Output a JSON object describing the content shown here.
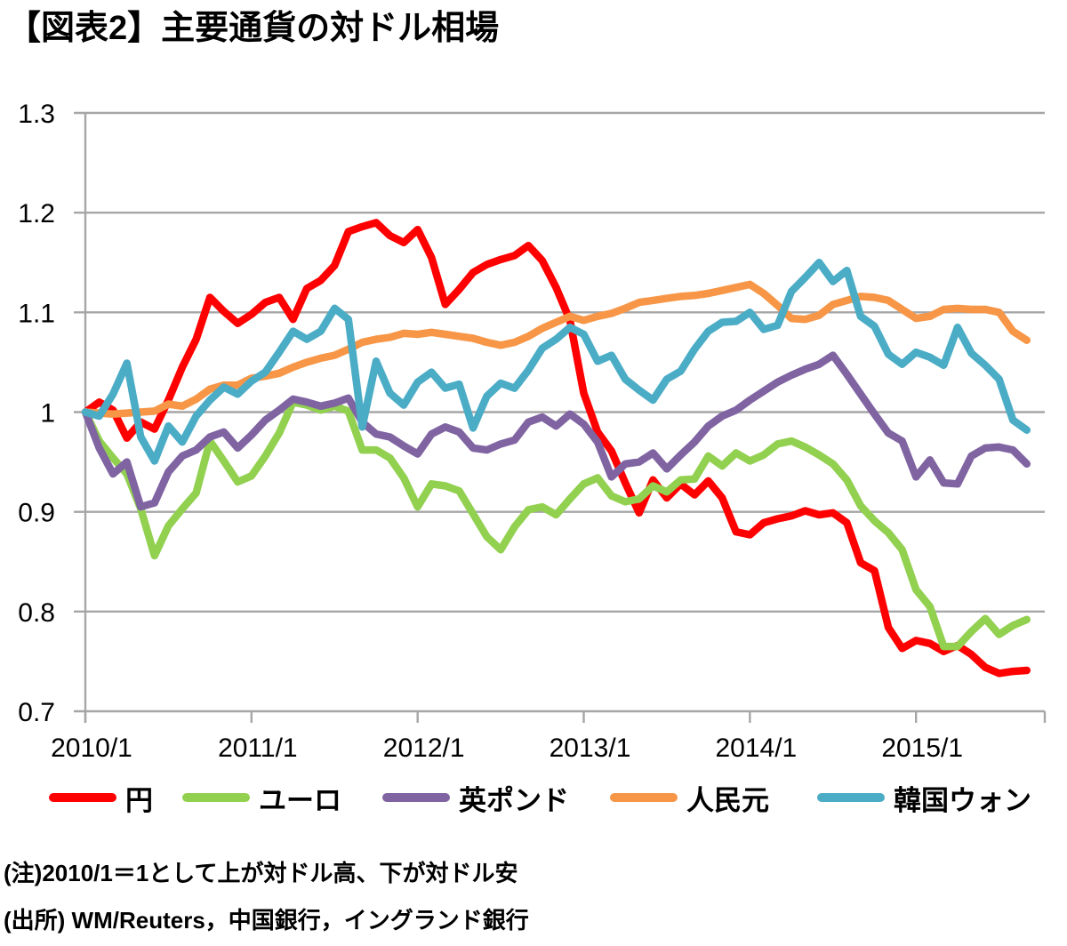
{
  "title": "【図表2】主要通貨の対ドル相場",
  "notes": [
    "(注)2010/1＝1として上が対ドル高、下が対ドル安",
    "(出所) WM/Reuters，中国銀行，イングランド銀行"
  ],
  "chart_data": {
    "type": "line",
    "title": "【図表2】主要通貨の対ドル相場",
    "x_unit": "month",
    "x_start": "2010/1",
    "x_end": "2015/9",
    "x_tick_labels": [
      "2010/1",
      "2011/1",
      "2012/1",
      "2013/1",
      "2014/1",
      "2015/1"
    ],
    "x_tick_indices": [
      0,
      12,
      24,
      36,
      48,
      60
    ],
    "y_ticks": [
      "1.3",
      "1.2",
      "1.1",
      "1",
      "0.9",
      "0.8",
      "0.7"
    ],
    "ylim": [
      0.7,
      1.3
    ],
    "grid": true,
    "grid_color": "#A6A6A6",
    "legend_position": "bottom",
    "series": [
      {
        "name": "円",
        "id": "yen",
        "color": "#FF0000",
        "values": [
          1.0,
          1.01,
          1.002,
          0.974,
          0.99,
          0.983,
          1.012,
          1.045,
          1.073,
          1.115,
          1.101,
          1.089,
          1.098,
          1.11,
          1.115,
          1.093,
          1.124,
          1.132,
          1.147,
          1.181,
          1.186,
          1.19,
          1.177,
          1.17,
          1.183,
          1.155,
          1.108,
          1.123,
          1.14,
          1.148,
          1.153,
          1.157,
          1.167,
          1.152,
          1.125,
          1.092,
          1.019,
          0.98,
          0.961,
          0.929,
          0.899,
          0.932,
          0.914,
          0.928,
          0.917,
          0.931,
          0.914,
          0.88,
          0.877,
          0.889,
          0.893,
          0.896,
          0.901,
          0.897,
          0.899,
          0.889,
          0.849,
          0.841,
          0.784,
          0.763,
          0.771,
          0.768,
          0.76,
          0.766,
          0.757,
          0.744,
          0.738,
          0.74,
          0.741
        ]
      },
      {
        "name": "ユーロ",
        "id": "euro",
        "color": "#92D050",
        "values": [
          1.0,
          0.971,
          0.954,
          0.938,
          0.903,
          0.856,
          0.886,
          0.903,
          0.919,
          0.971,
          0.951,
          0.93,
          0.936,
          0.956,
          0.979,
          1.01,
          1.007,
          1.002,
          1.006,
          1.001,
          0.962,
          0.962,
          0.954,
          0.934,
          0.905,
          0.928,
          0.926,
          0.921,
          0.898,
          0.875,
          0.862,
          0.885,
          0.902,
          0.905,
          0.897,
          0.913,
          0.928,
          0.934,
          0.916,
          0.91,
          0.913,
          0.926,
          0.92,
          0.932,
          0.933,
          0.956,
          0.946,
          0.959,
          0.951,
          0.957,
          0.968,
          0.971,
          0.965,
          0.957,
          0.948,
          0.932,
          0.906,
          0.891,
          0.879,
          0.862,
          0.822,
          0.805,
          0.765,
          0.765,
          0.78,
          0.793,
          0.777,
          0.786,
          0.792
        ]
      },
      {
        "name": "英ポンド",
        "id": "gbp",
        "color": "#8064A2",
        "values": [
          1.0,
          0.964,
          0.938,
          0.95,
          0.905,
          0.909,
          0.94,
          0.956,
          0.962,
          0.975,
          0.98,
          0.964,
          0.977,
          0.992,
          1.002,
          1.013,
          1.01,
          1.006,
          1.009,
          1.014,
          0.99,
          0.978,
          0.975,
          0.966,
          0.958,
          0.978,
          0.985,
          0.98,
          0.964,
          0.962,
          0.968,
          0.972,
          0.99,
          0.995,
          0.986,
          0.998,
          0.988,
          0.97,
          0.935,
          0.948,
          0.95,
          0.959,
          0.943,
          0.957,
          0.97,
          0.986,
          0.996,
          1.002,
          1.012,
          1.021,
          1.03,
          1.037,
          1.043,
          1.048,
          1.057,
          1.038,
          1.018,
          0.998,
          0.979,
          0.971,
          0.935,
          0.952,
          0.929,
          0.928,
          0.956,
          0.964,
          0.965,
          0.962,
          0.948
        ]
      },
      {
        "name": "人民元",
        "id": "cny",
        "color": "#F79646",
        "values": [
          1.0,
          0.999,
          0.998,
          0.999,
          1.0,
          1.001,
          1.008,
          1.006,
          1.013,
          1.023,
          1.027,
          1.027,
          1.034,
          1.036,
          1.039,
          1.045,
          1.05,
          1.054,
          1.057,
          1.063,
          1.07,
          1.073,
          1.075,
          1.079,
          1.078,
          1.08,
          1.078,
          1.076,
          1.074,
          1.07,
          1.067,
          1.07,
          1.076,
          1.084,
          1.09,
          1.096,
          1.092,
          1.096,
          1.099,
          1.104,
          1.11,
          1.112,
          1.114,
          1.116,
          1.117,
          1.119,
          1.122,
          1.125,
          1.128,
          1.119,
          1.107,
          1.094,
          1.093,
          1.097,
          1.108,
          1.112,
          1.116,
          1.115,
          1.112,
          1.103,
          1.094,
          1.096,
          1.103,
          1.104,
          1.103,
          1.103,
          1.1,
          1.081,
          1.072
        ]
      },
      {
        "name": "韓国ウォン",
        "id": "krw",
        "color": "#4BACC6",
        "values": [
          1.0,
          0.996,
          1.018,
          1.049,
          0.975,
          0.951,
          0.986,
          0.97,
          0.996,
          1.012,
          1.025,
          1.018,
          1.031,
          1.04,
          1.06,
          1.081,
          1.073,
          1.081,
          1.104,
          1.093,
          0.985,
          1.051,
          1.019,
          1.007,
          1.03,
          1.04,
          1.024,
          1.028,
          0.984,
          1.016,
          1.029,
          1.024,
          1.042,
          1.064,
          1.073,
          1.085,
          1.078,
          1.051,
          1.057,
          1.033,
          1.022,
          1.012,
          1.033,
          1.041,
          1.063,
          1.081,
          1.09,
          1.091,
          1.1,
          1.083,
          1.087,
          1.121,
          1.135,
          1.15,
          1.131,
          1.142,
          1.096,
          1.086,
          1.058,
          1.048,
          1.06,
          1.055,
          1.047,
          1.085,
          1.059,
          1.047,
          1.033,
          0.992,
          0.982
        ]
      }
    ]
  }
}
